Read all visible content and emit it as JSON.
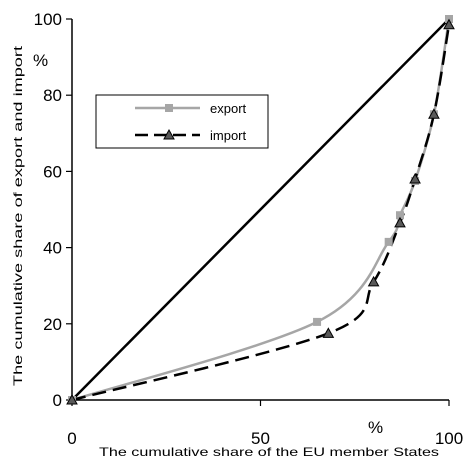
{
  "chart_data": {
    "type": "line",
    "title": "",
    "xlabel": "The cumulative share of the EU member States",
    "ylabel": "The cumulative share of export and import",
    "x_unit": "%",
    "y_unit": "%",
    "xlim": [
      0,
      100
    ],
    "ylim": [
      0,
      100
    ],
    "x_ticks": [
      "0",
      "50",
      "100"
    ],
    "y_ticks": [
      "0",
      "20",
      "40",
      "60",
      "80",
      "100"
    ],
    "grid": false,
    "legend_position": "upper-left",
    "diagonal": {
      "x": [
        0,
        100
      ],
      "y": [
        0,
        100
      ],
      "color": "#000000"
    },
    "series": [
      {
        "name": "export",
        "style": "solid",
        "marker": "square",
        "color": "#a6a6a6",
        "x": [
          0,
          65,
          84,
          87,
          91,
          96,
          100
        ],
        "y": [
          0,
          20.5,
          41.5,
          48.5,
          57.5,
          75,
          100
        ]
      },
      {
        "name": "import",
        "style": "dashed",
        "marker": "triangle",
        "color": "#000000",
        "x": [
          0,
          68,
          80,
          87,
          91,
          96,
          100
        ],
        "y": [
          0,
          17.5,
          31,
          46.5,
          58,
          75,
          98.5
        ]
      }
    ]
  }
}
